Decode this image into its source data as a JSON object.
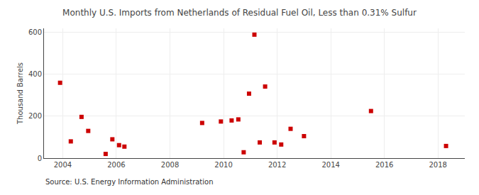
{
  "chart_data": {
    "type": "scatter",
    "title": "Monthly U.S. Imports from Netherlands of Residual Fuel Oil, Less than 0.31% Sulfur",
    "ylabel": "Thousand Barrels",
    "annotations": [
      "Source: U.S. Energy Information Administration"
    ],
    "x": [
      2003.9,
      2004.3,
      2004.7,
      2004.95,
      2005.6,
      2005.85,
      2006.1,
      2006.3,
      2009.2,
      2009.9,
      2010.3,
      2010.55,
      2010.75,
      2010.95,
      2011.15,
      2011.35,
      2011.55,
      2011.9,
      2012.15,
      2012.5,
      2013.0,
      2015.5,
      2018.3
    ],
    "values": [
      360,
      80,
      197,
      130,
      20,
      90,
      62,
      55,
      168,
      175,
      180,
      185,
      28,
      308,
      590,
      75,
      342,
      75,
      65,
      140,
      105,
      225,
      58
    ],
    "color": "#cc0000",
    "marker": "square",
    "xlim": [
      2003.3,
      2019.0
    ],
    "ylim": [
      0,
      620
    ],
    "xticks": [
      2004,
      2006,
      2008,
      2010,
      2012,
      2014,
      2016,
      2018
    ],
    "yticks": [
      0,
      200,
      400,
      600
    ],
    "grid": true
  }
}
